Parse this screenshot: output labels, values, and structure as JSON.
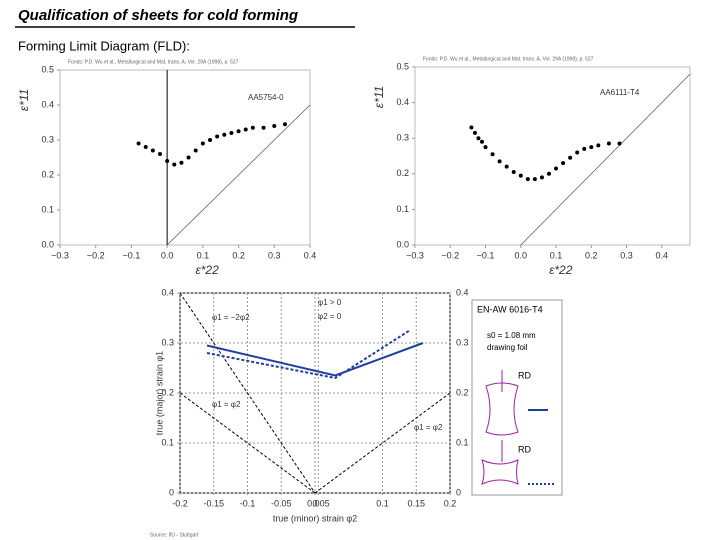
{
  "header": {
    "title": "Qualification of sheets for cold forming",
    "subtitle": "Forming Limit Diagram (FLD):"
  },
  "chart_data": [
    {
      "type": "scatter",
      "source": "Fonds: P.D. Wu et al., Metallurgical and Mat. trans. A, Vol. 29A (1998), p. 527",
      "annotation": "AA5754-0",
      "y_label": "ε*11",
      "x_label": "ε*22",
      "color": "#000000",
      "diagonal": true,
      "zero_line": true,
      "xlim": [
        -0.3,
        0.4
      ],
      "ylim": [
        0,
        0.5
      ],
      "xticks": [
        {
          "value": -0.3,
          "label": "−0.3"
        },
        {
          "value": -0.2,
          "label": "−0.2"
        },
        {
          "value": -0.1,
          "label": "−0.1"
        },
        {
          "value": 0,
          "label": "0.0"
        },
        {
          "value": 0.1,
          "label": "0.1"
        },
        {
          "value": 0.2,
          "label": "0.2"
        },
        {
          "value": 0.3,
          "label": "0.3"
        },
        {
          "value": 0.4,
          "label": "0.4"
        }
      ],
      "yticks": [
        {
          "value": 0,
          "label": "0.0"
        },
        {
          "value": 0.1,
          "label": "0.1"
        },
        {
          "value": 0.2,
          "label": "0.2"
        },
        {
          "value": 0.3,
          "label": "0.3"
        },
        {
          "value": 0.4,
          "label": "0.4"
        },
        {
          "value": 0.5,
          "label": "0.5"
        }
      ],
      "series": [
        {
          "color": "#000000",
          "x": [
            -0.08,
            -0.06,
            -0.04,
            -0.02,
            0,
            0.02,
            0.04,
            0.06,
            0.08,
            0.1,
            0.12,
            0.14,
            0.16,
            0.18,
            0.2,
            0.22,
            0.24,
            0.27,
            0.3,
            0.33
          ],
          "values": [
            0.29,
            0.28,
            0.27,
            0.26,
            0.24,
            0.23,
            0.235,
            0.25,
            0.27,
            0.29,
            0.3,
            0.31,
            0.315,
            0.32,
            0.325,
            0.33,
            0.335,
            0.335,
            0.34,
            0.345
          ]
        }
      ]
    },
    {
      "type": "scatter",
      "source": "Fonds: P.D. Wu et al., Metallurgical and Mat. trans. A, Vol. 29A (1998), p. 527",
      "annotation": "AA6111-T4",
      "y_label": "ε*11",
      "x_label": "ε*22",
      "color": "#000000",
      "diagonal": true,
      "zero_line": false,
      "xlim": [
        -0.3,
        0.48
      ],
      "ylim": [
        0,
        0.5
      ],
      "xticks": [
        {
          "value": -0.3,
          "label": "−0.3"
        },
        {
          "value": -0.2,
          "label": "−0.2"
        },
        {
          "value": -0.1,
          "label": "−0.1"
        },
        {
          "value": 0,
          "label": "0.0"
        },
        {
          "value": 0.1,
          "label": "0.1"
        },
        {
          "value": 0.2,
          "label": "0.2"
        },
        {
          "value": 0.3,
          "label": "0.3"
        },
        {
          "value": 0.4,
          "label": "0.4"
        }
      ],
      "yticks": [
        {
          "value": 0,
          "label": "0.0"
        },
        {
          "value": 0.1,
          "label": "0.1"
        },
        {
          "value": 0.2,
          "label": "0.2"
        },
        {
          "value": 0.3,
          "label": "0.3"
        },
        {
          "value": 0.4,
          "label": "0.4"
        },
        {
          "value": 0.5,
          "label": "0.5"
        }
      ],
      "series": [
        {
          "color": "#000000",
          "x": [
            -0.14,
            -0.13,
            -0.12,
            -0.11,
            -0.1,
            -0.08,
            -0.06,
            -0.04,
            -0.02,
            0,
            0.02,
            0.04,
            0.06,
            0.08,
            0.1,
            0.12,
            0.14,
            0.16,
            0.18,
            0.2,
            0.22,
            0.25,
            0.28
          ],
          "values": [
            0.33,
            0.315,
            0.3,
            0.29,
            0.275,
            0.255,
            0.235,
            0.22,
            0.205,
            0.195,
            0.185,
            0.185,
            0.19,
            0.2,
            0.215,
            0.23,
            0.245,
            0.26,
            0.27,
            0.275,
            0.28,
            0.285,
            0.285
          ]
        }
      ]
    },
    {
      "type": "line",
      "y_label": "true (major) strain φ1",
      "x_label": "true (minor) strain φ2",
      "source": "Source: IfU - Stuttgart",
      "grid": true,
      "right_axis": true,
      "xlim": [
        -0.2,
        0.2
      ],
      "ylim": [
        0,
        0.4
      ],
      "xticks": [
        -0.2,
        -0.15,
        -0.1,
        -0.05,
        0,
        0.005,
        0.1,
        0.15,
        0.2
      ],
      "yticks": [
        0,
        0.1,
        0.2,
        0.3,
        0.4
      ],
      "annotations": [
        "φ1 = −2φ2",
        "φ1 > 0",
        "φ2 = 0",
        "φ1 = φ2",
        "φ1 = φ2"
      ],
      "reference_lines": [
        {
          "x": [
            -0.2,
            0
          ],
          "values": [
            0.4,
            0
          ]
        },
        {
          "x": [
            -0.2,
            0
          ],
          "values": [
            0.2,
            0
          ]
        },
        {
          "x": [
            0,
            0.2
          ],
          "values": [
            0,
            0.2
          ]
        }
      ],
      "series": [
        {
          "color": "#1f3fa0",
          "dash": false,
          "x": [
            -0.16,
            0.03,
            0.16
          ],
          "values": [
            0.295,
            0.235,
            0.3
          ]
        },
        {
          "color": "#1f3fa0",
          "dash": true,
          "x": [
            -0.16,
            0.03,
            0.14
          ],
          "values": [
            0.28,
            0.23,
            0.325
          ]
        }
      ],
      "legend": {
        "material": "EN-AW 6016-T4",
        "thickness": "s0 = 1.08 mm",
        "foil": "drawing foil",
        "rd_top": "RD",
        "rd_bottom": "RD"
      }
    }
  ]
}
